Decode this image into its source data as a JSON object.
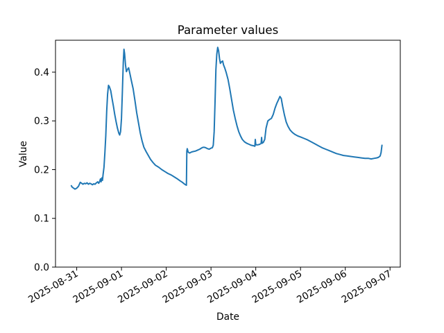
{
  "figure": {
    "title": "Parameter values",
    "xlabel": "Date",
    "ylabel": "Value"
  },
  "chart_data": {
    "type": "line",
    "title": "Parameter values",
    "xlabel": "Date",
    "ylabel": "Value",
    "grid": false,
    "legend": false,
    "background_color": "#ffffff",
    "line_color": "#1f77b4",
    "axis_color": "#000000",
    "x_days_from": "2025-08-31",
    "xlim_days": [
      -0.474,
      7.229
    ],
    "ylim": [
      0.0,
      0.4655
    ],
    "x_ticks": [
      {
        "t": 0,
        "label": "2025-08-31"
      },
      {
        "t": 1,
        "label": "2025-09-01"
      },
      {
        "t": 2,
        "label": "2025-09-02"
      },
      {
        "t": 3,
        "label": "2025-09-03"
      },
      {
        "t": 4,
        "label": "2025-09-04"
      },
      {
        "t": 5,
        "label": "2025-09-05"
      },
      {
        "t": 6,
        "label": "2025-09-06"
      },
      {
        "t": 7,
        "label": "2025-09-07"
      }
    ],
    "y_ticks": [
      {
        "v": 0.0,
        "label": "0.0"
      },
      {
        "v": 0.1,
        "label": "0.1"
      },
      {
        "v": 0.2,
        "label": "0.2"
      },
      {
        "v": 0.3,
        "label": "0.3"
      },
      {
        "v": 0.4,
        "label": "0.4"
      }
    ],
    "series": [
      {
        "name": "parameter-value",
        "x_days": [
          -0.12,
          -0.1,
          -0.07,
          -0.04,
          0.0,
          0.04,
          0.08,
          0.11,
          0.14,
          0.17,
          0.2,
          0.23,
          0.26,
          0.29,
          0.32,
          0.35,
          0.38,
          0.41,
          0.44,
          0.47,
          0.49,
          0.51,
          0.53,
          0.545,
          0.56,
          0.575,
          0.59,
          0.61,
          0.63,
          0.65,
          0.67,
          0.69,
          0.71,
          0.73,
          0.76,
          0.79,
          0.82,
          0.85,
          0.88,
          0.91,
          0.94,
          0.96,
          0.98,
          1.0,
          1.02,
          1.04,
          1.055,
          1.07,
          1.09,
          1.11,
          1.13,
          1.16,
          1.19,
          1.22,
          1.26,
          1.3,
          1.34,
          1.38,
          1.42,
          1.46,
          1.5,
          1.55,
          1.6,
          1.65,
          1.7,
          1.76,
          1.83,
          1.9,
          1.97,
          2.04,
          2.11,
          2.18,
          2.25,
          2.31,
          2.36,
          2.4,
          2.43,
          2.45,
          2.46,
          2.47,
          2.49,
          2.52,
          2.56,
          2.6,
          2.65,
          2.7,
          2.75,
          2.8,
          2.84,
          2.88,
          2.92,
          2.96,
          3.0,
          3.03,
          3.05,
          3.07,
          3.09,
          3.11,
          3.13,
          3.15,
          3.17,
          3.19,
          3.21,
          3.23,
          3.26,
          3.28,
          3.31,
          3.34,
          3.38,
          3.42,
          3.46,
          3.5,
          3.54,
          3.58,
          3.62,
          3.66,
          3.7,
          3.75,
          3.8,
          3.85,
          3.9,
          3.95,
          3.98,
          3.99,
          4.0,
          4.05,
          4.09,
          4.12,
          4.13,
          4.14,
          4.17,
          4.2,
          4.23,
          4.27,
          4.31,
          4.35,
          4.39,
          4.43,
          4.47,
          4.51,
          4.54,
          4.57,
          4.6,
          4.64,
          4.68,
          4.72,
          4.77,
          4.82,
          4.88,
          4.94,
          5.0,
          5.08,
          5.16,
          5.24,
          5.32,
          5.4,
          5.48,
          5.56,
          5.64,
          5.72,
          5.8,
          5.88,
          5.96,
          6.04,
          6.12,
          6.2,
          6.28,
          6.36,
          6.44,
          6.52,
          6.58,
          6.64,
          6.7,
          6.74,
          6.78,
          6.8,
          6.82
        ],
        "values": [
          0.167,
          0.164,
          0.162,
          0.16,
          0.162,
          0.166,
          0.174,
          0.172,
          0.17,
          0.172,
          0.171,
          0.173,
          0.17,
          0.172,
          0.171,
          0.169,
          0.171,
          0.17,
          0.173,
          0.175,
          0.172,
          0.175,
          0.181,
          0.175,
          0.183,
          0.178,
          0.19,
          0.205,
          0.235,
          0.27,
          0.32,
          0.355,
          0.373,
          0.37,
          0.362,
          0.345,
          0.33,
          0.313,
          0.298,
          0.285,
          0.275,
          0.271,
          0.278,
          0.305,
          0.36,
          0.42,
          0.447,
          0.438,
          0.415,
          0.401,
          0.405,
          0.409,
          0.396,
          0.383,
          0.366,
          0.342,
          0.317,
          0.296,
          0.275,
          0.259,
          0.246,
          0.237,
          0.229,
          0.221,
          0.215,
          0.209,
          0.205,
          0.2,
          0.196,
          0.192,
          0.189,
          0.185,
          0.181,
          0.177,
          0.174,
          0.171,
          0.169,
          0.168,
          0.238,
          0.243,
          0.236,
          0.234,
          0.236,
          0.237,
          0.238,
          0.24,
          0.242,
          0.245,
          0.246,
          0.245,
          0.243,
          0.242,
          0.244,
          0.245,
          0.25,
          0.278,
          0.34,
          0.405,
          0.437,
          0.451,
          0.444,
          0.428,
          0.418,
          0.421,
          0.423,
          0.415,
          0.408,
          0.399,
          0.385,
          0.366,
          0.344,
          0.322,
          0.305,
          0.29,
          0.278,
          0.269,
          0.262,
          0.257,
          0.254,
          0.252,
          0.25,
          0.249,
          0.248,
          0.262,
          0.251,
          0.251,
          0.252,
          0.254,
          0.266,
          0.254,
          0.256,
          0.262,
          0.285,
          0.3,
          0.303,
          0.305,
          0.313,
          0.326,
          0.336,
          0.344,
          0.35,
          0.346,
          0.33,
          0.312,
          0.298,
          0.289,
          0.281,
          0.276,
          0.272,
          0.269,
          0.267,
          0.264,
          0.261,
          0.257,
          0.253,
          0.249,
          0.245,
          0.242,
          0.239,
          0.236,
          0.233,
          0.231,
          0.229,
          0.228,
          0.227,
          0.226,
          0.225,
          0.224,
          0.223,
          0.223,
          0.222,
          0.223,
          0.224,
          0.225,
          0.228,
          0.235,
          0.25
        ]
      }
    ]
  }
}
